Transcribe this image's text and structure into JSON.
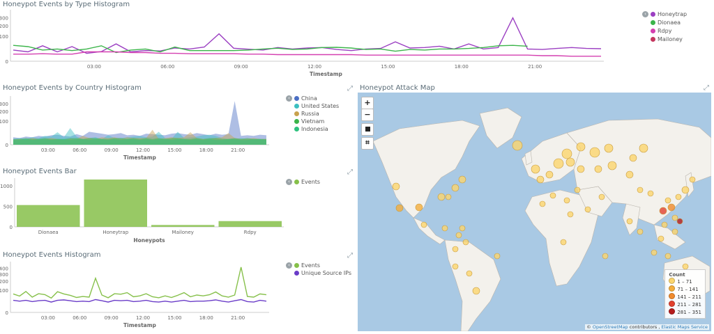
{
  "panel1": {
    "title": "Honeypot Events by Type Histogram",
    "legend": [
      {
        "label": "Honeytrap",
        "color": "#9b3fc2"
      },
      {
        "label": "Dionaea",
        "color": "#3bb44a"
      },
      {
        "label": "Rdpy",
        "color": "#d43fb0"
      },
      {
        "label": "Mailoney",
        "color": "#c4365e"
      }
    ]
  },
  "panel2": {
    "title": "Honeypot Events by Country Histogram",
    "legend": [
      {
        "label": "China",
        "color": "#4b6fc4"
      },
      {
        "label": "United States",
        "color": "#3cbfc0"
      },
      {
        "label": "Russia",
        "color": "#c8a24e"
      },
      {
        "label": "Vietnam",
        "color": "#3bb44a"
      },
      {
        "label": "Indonesia",
        "color": "#2ec27e"
      }
    ]
  },
  "panel3": {
    "title": "Honeypot Events Bar",
    "legend": [
      {
        "label": "Events",
        "color": "#86c04a"
      }
    ]
  },
  "panel4": {
    "title": "Honeypot Events Histogram",
    "legend": [
      {
        "label": "Events",
        "color": "#86c04a"
      },
      {
        "label": "Unique Source IPs",
        "color": "#6a3cc8"
      }
    ]
  },
  "map": {
    "title": "Honeypot Attack Map",
    "zoom_in": "+",
    "zoom_out": "−",
    "legend_title": "Count",
    "legend": [
      {
        "label": "1 – 71",
        "color": "#fbd66e"
      },
      {
        "label": "71 – 141",
        "color": "#f4ae3c"
      },
      {
        "label": "141 – 211",
        "color": "#f08a2c"
      },
      {
        "label": "211 – 281",
        "color": "#e2412f"
      },
      {
        "label": "281 – 351",
        "color": "#b51c1c"
      }
    ],
    "attribution_prefix": "©",
    "attribution_link1": "OpenStreetMap",
    "attribution_middle": "contributors ,",
    "attribution_link2": "Elastic Maps Service"
  },
  "chart_data": [
    {
      "type": "line",
      "title": "Honeypot Events by Type Histogram",
      "xlabel": "Timestamp",
      "x_ticks": [
        "03:00",
        "06:00",
        "09:00",
        "12:00",
        "15:00",
        "18:00",
        "21:00"
      ],
      "y_ticks": [
        "0",
        "100",
        "200",
        "300"
      ],
      "scale": "log",
      "ylim": [
        0,
        400
      ],
      "series": [
        {
          "name": "Honeytrap",
          "color": "#9b3fc2",
          "values": [
            20,
            14,
            38,
            14,
            34,
            10,
            15,
            48,
            14,
            18,
            17,
            28,
            24,
            32,
            120,
            27,
            23,
            20,
            30,
            24,
            28,
            30,
            22,
            18,
            24,
            26,
            60,
            28,
            30,
            36,
            24,
            48,
            24,
            30,
            300,
            24,
            22,
            26,
            30,
            26,
            25
          ]
        },
        {
          "name": "Dionaea",
          "color": "#3bb44a",
          "values": [
            40,
            34,
            20,
            24,
            18,
            24,
            38,
            12,
            20,
            24,
            14,
            32,
            18,
            18,
            18,
            18,
            20,
            24,
            27,
            22,
            24,
            30,
            31,
            28,
            22,
            24,
            16,
            22,
            20,
            24,
            24,
            26,
            30,
            38,
            40,
            36,
            null,
            null,
            null,
            null,
            null
          ]
        },
        {
          "name": "Rdpy",
          "color": "#d43fb0",
          "values": [
            8,
            8,
            9,
            8,
            8,
            14,
            14,
            14,
            12,
            12,
            10,
            10,
            9,
            9,
            9,
            9,
            8,
            8,
            7,
            7,
            7,
            7,
            7,
            7,
            6,
            6,
            6,
            6,
            6,
            6,
            6,
            6,
            6,
            6,
            6,
            6,
            5,
            5,
            4,
            4,
            4
          ]
        },
        {
          "name": "Mailoney",
          "color": "#c4365e",
          "values": [
            null,
            null,
            null,
            null,
            null,
            null,
            null,
            null,
            null,
            null,
            null,
            null,
            null,
            null,
            null,
            null,
            null,
            null,
            null,
            null,
            null,
            null,
            null,
            null,
            null,
            null,
            null,
            null,
            null,
            null,
            null,
            null,
            null,
            null,
            null,
            null,
            null,
            null,
            null,
            null,
            null
          ]
        }
      ]
    },
    {
      "type": "area",
      "title": "Honeypot Events by Country Histogram",
      "xlabel": "Timestamp",
      "x_ticks": [
        "03:00",
        "06:00",
        "09:00",
        "12:00",
        "15:00",
        "18:00",
        "21:00"
      ],
      "y_ticks": [
        "0",
        "100",
        "200",
        "300"
      ],
      "scale": "log",
      "ylim": [
        0,
        400
      ],
      "series": [
        {
          "name": "China",
          "color": "#4b6fc4",
          "values": [
            10,
            8,
            12,
            10,
            14,
            12,
            16,
            18,
            14,
            12,
            20,
            14,
            30,
            26,
            22,
            18,
            20,
            24,
            16,
            18,
            14,
            22,
            20,
            18,
            16,
            22,
            24,
            20,
            18,
            24,
            20,
            16,
            22,
            18,
            20,
            340,
            14,
            16,
            14,
            18,
            16
          ]
        },
        {
          "name": "United States",
          "color": "#3cbfc0",
          "values": [
            6,
            8,
            6,
            10,
            8,
            14,
            12,
            28,
            10,
            50,
            12,
            6,
            8,
            10,
            6,
            16,
            8,
            8,
            10,
            12,
            14,
            10,
            12,
            30,
            8,
            6,
            30,
            8,
            10,
            12,
            16,
            18,
            14,
            8,
            6,
            6,
            8,
            6,
            6,
            6,
            6
          ]
        },
        {
          "name": "Russia",
          "color": "#c8a24e",
          "values": [
            4,
            6,
            4,
            8,
            6,
            6,
            8,
            6,
            4,
            6,
            6,
            14,
            8,
            6,
            10,
            8,
            10,
            6,
            10,
            8,
            8,
            8,
            40,
            6,
            8,
            10,
            8,
            10,
            28,
            8,
            6,
            6,
            8,
            10,
            24,
            8,
            6,
            6,
            8,
            6,
            6
          ]
        },
        {
          "name": "Vietnam",
          "color": "#3bb44a",
          "values": [
            6,
            6,
            8,
            6,
            6,
            8,
            6,
            6,
            6,
            8,
            8,
            6,
            8,
            8,
            6,
            6,
            8,
            8,
            6,
            8,
            6,
            8,
            6,
            8,
            6,
            8,
            8,
            6,
            6,
            8,
            6,
            8,
            8,
            6,
            6,
            8,
            6,
            8,
            6,
            6,
            6
          ]
        },
        {
          "name": "Indonesia",
          "color": "#2ec27e",
          "values": [
            4,
            4,
            6,
            4,
            6,
            6,
            4,
            6,
            6,
            4,
            6,
            6,
            4,
            6,
            6,
            4,
            6,
            4,
            6,
            6,
            4,
            6,
            4,
            6,
            6,
            4,
            6,
            6,
            4,
            6,
            4,
            6,
            4,
            4,
            6,
            6,
            4,
            4,
            6,
            6,
            4
          ]
        }
      ]
    },
    {
      "type": "bar",
      "title": "Honeypot Events Bar",
      "xlabel": "Honeypots",
      "categories": [
        "Dionaea",
        "Honeytrap",
        "Mailoney",
        "Rdpy"
      ],
      "y_ticks": [
        "0",
        "500",
        "1000"
      ],
      "ylim": [
        0,
        1150
      ],
      "series": [
        {
          "name": "Events",
          "color": "#86c04a",
          "values": [
            530,
            1170,
            45,
            140
          ]
        }
      ]
    },
    {
      "type": "line",
      "title": "Honeypot Events Histogram",
      "xlabel": "Timestamp",
      "x_ticks": [
        "03:00",
        "06:00",
        "09:00",
        "12:00",
        "15:00",
        "18:00",
        "21:00"
      ],
      "y_ticks": [
        "0",
        "100",
        "200",
        "300",
        "400"
      ],
      "scale": "log",
      "ylim": [
        0,
        500
      ],
      "series": [
        {
          "name": "Events",
          "color": "#86c04a",
          "values": [
            70,
            55,
            90,
            48,
            72,
            65,
            42,
            88,
            70,
            60,
            46,
            52,
            48,
            240,
            62,
            44,
            72,
            68,
            80,
            50,
            56,
            72,
            50,
            44,
            56,
            46,
            60,
            80,
            50,
            62,
            56,
            64,
            86,
            56,
            48,
            62,
            420,
            52,
            48,
            70,
            64
          ]
        },
        {
          "name": "Unique Source IPs",
          "color": "#6a3cc8",
          "values": [
            30,
            26,
            30,
            24,
            28,
            30,
            22,
            30,
            32,
            28,
            24,
            26,
            24,
            34,
            28,
            22,
            30,
            28,
            30,
            24,
            26,
            30,
            24,
            22,
            26,
            22,
            26,
            30,
            24,
            26,
            26,
            28,
            32,
            26,
            22,
            28,
            34,
            24,
            22,
            30,
            26
          ]
        }
      ]
    }
  ]
}
